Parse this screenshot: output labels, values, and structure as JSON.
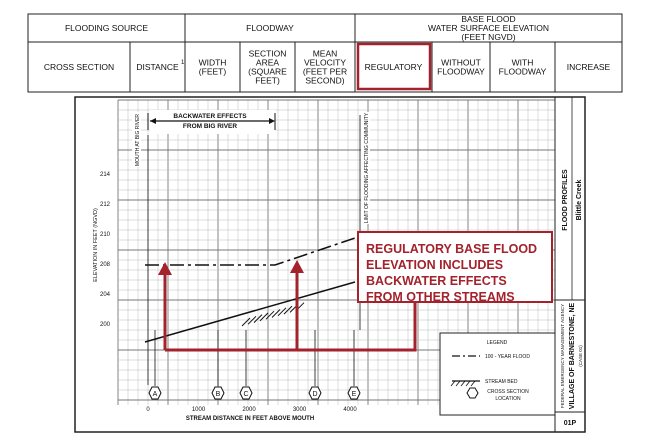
{
  "table": {
    "groups": [
      [
        "FLOODING SOURCE"
      ],
      [
        "FLOODWAY"
      ],
      [
        "BASE FLOOD",
        "WATER SURFACE ELEVATION",
        "(FEET NGVD)"
      ]
    ],
    "columns": [
      [
        "CROSS SECTION"
      ],
      [
        "DISTANCE"
      ],
      [
        "WIDTH",
        "(FEET)"
      ],
      [
        "SECTION",
        "AREA",
        "(SQUARE",
        "FEET)"
      ],
      [
        "MEAN",
        "VELOCITY",
        "(FEET PER",
        "SECOND)"
      ],
      [
        "REGULATORY"
      ],
      [
        "WITHOUT",
        "FLOODWAY"
      ],
      [
        "WITH",
        "FLOODWAY"
      ],
      [
        "INCREASE"
      ]
    ],
    "distance_note": "1"
  },
  "profile": {
    "y_axis_label": "ELEVATION IN FEET (NGVD)",
    "y_ticks": [
      214,
      212,
      210,
      208,
      204,
      200
    ],
    "x_axis_label": "STREAM DISTANCE IN FEET ABOVE MOUTH",
    "x_ticks": [
      0,
      1000,
      2000,
      3000,
      4000
    ],
    "backwater": [
      "BACKWATER EFFECTS",
      "FROM BIG RIVER"
    ],
    "mouth": "MOUTH AT BIG RIVER",
    "limit": "LIMIT OF FLOODING AFFECTING COMMUNITY",
    "cross_sections": [
      "A",
      "B",
      "C",
      "D",
      "E"
    ],
    "callout": [
      "REGULATORY BASE FLOOD",
      "ELEVATION INCLUDES",
      "BACKWATER EFFECTS",
      "FROM OTHER STREAMS"
    ],
    "legend": {
      "title": "LEGEND",
      "flood": "100 - YEAR FLOOD",
      "bed": "STREAM BED",
      "xs": [
        "CROSS SECTION",
        "LOCATION"
      ]
    },
    "title_block": {
      "title": "FLOOD PROFILES",
      "stream": "Blittle Creek",
      "agency": "FEDERAL EMERGENCY MANAGEMENT AGENCY",
      "community": "VILLAGE OF BARNESTONE, NE",
      "case": "(CASE 01)",
      "panel": "01P"
    }
  }
}
